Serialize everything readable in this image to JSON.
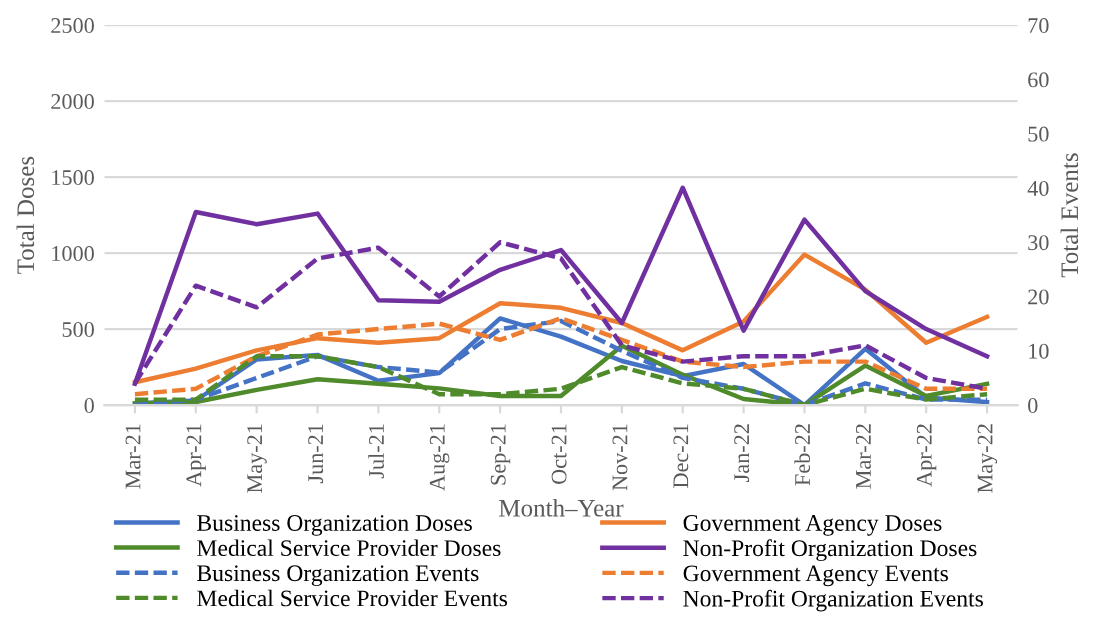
{
  "chart_data": {
    "type": "line",
    "xlabel": "Month–Year",
    "ylabel": "Total Doses",
    "y2label": "Total Events",
    "categories": [
      "Mar-21",
      "Apr-21",
      "May-21",
      "Jun-21",
      "Jul-21",
      "Aug-21",
      "Sep-21",
      "Oct-21",
      "Nov-21",
      "Dec-21",
      "Jan-22",
      "Feb-22",
      "Mar-22",
      "Apr-22",
      "May-22"
    ],
    "ylim": [
      0,
      2500
    ],
    "yticks": [
      0,
      500,
      1000,
      1500,
      2000,
      2500
    ],
    "y2lim": [
      0,
      70
    ],
    "y2ticks": [
      0,
      10,
      20,
      30,
      40,
      50,
      60,
      70
    ],
    "grid": "y",
    "legend": "bottom",
    "marker": "none",
    "series": [
      {
        "name": "Business Organization Doses",
        "color": "#4472c4",
        "line_style": "solid",
        "values": [
          10,
          30,
          300,
          330,
          160,
          210,
          570,
          450,
          290,
          190,
          270,
          0,
          370,
          50,
          20
        ]
      },
      {
        "name": "Government Agency Doses",
        "color": "#ed7d31",
        "line_style": "solid",
        "values": [
          150,
          240,
          360,
          440,
          410,
          440,
          670,
          640,
          540,
          360,
          550,
          990,
          760,
          410,
          580
        ]
      },
      {
        "name": "Medical Service Provider Doses",
        "color": "#4f8a2b",
        "line_style": "solid",
        "values": [
          10,
          20,
          100,
          170,
          140,
          110,
          60,
          60,
          390,
          200,
          40,
          0,
          260,
          60,
          140
        ]
      },
      {
        "name": "Non-Profit Organization Doses",
        "color": "#7030a0",
        "line_style": "solid",
        "values": [
          140,
          1270,
          1190,
          1260,
          690,
          680,
          890,
          1020,
          540,
          1430,
          490,
          1220,
          750,
          500,
          320
        ]
      },
      {
        "name": "Business Organization Events",
        "color": "#4472c4",
        "line_style": "dashed",
        "axis": "y2",
        "values": [
          0,
          1,
          5,
          9,
          7,
          6,
          14,
          15.5,
          10,
          5,
          3,
          0,
          4,
          1,
          1
        ]
      },
      {
        "name": "Government Agency Events",
        "color": "#ed7d31",
        "line_style": "dashed",
        "axis": "y2",
        "values": [
          2,
          3,
          9,
          13,
          14,
          15,
          12,
          16,
          12,
          8,
          7,
          8,
          8,
          3,
          3
        ]
      },
      {
        "name": "Medical Service Provider Events",
        "color": "#4f8a2b",
        "line_style": "dashed",
        "axis": "y2",
        "values": [
          1,
          1,
          9,
          9,
          7,
          2,
          2,
          3,
          7,
          4,
          3,
          0,
          3,
          1,
          2
        ]
      },
      {
        "name": "Non-Profit Organization Events",
        "color": "#7030a0",
        "line_style": "dashed",
        "axis": "y2",
        "values": [
          4,
          22,
          18,
          27,
          29,
          20,
          30,
          27,
          11,
          8,
          9,
          9,
          11,
          5,
          3
        ]
      }
    ]
  }
}
